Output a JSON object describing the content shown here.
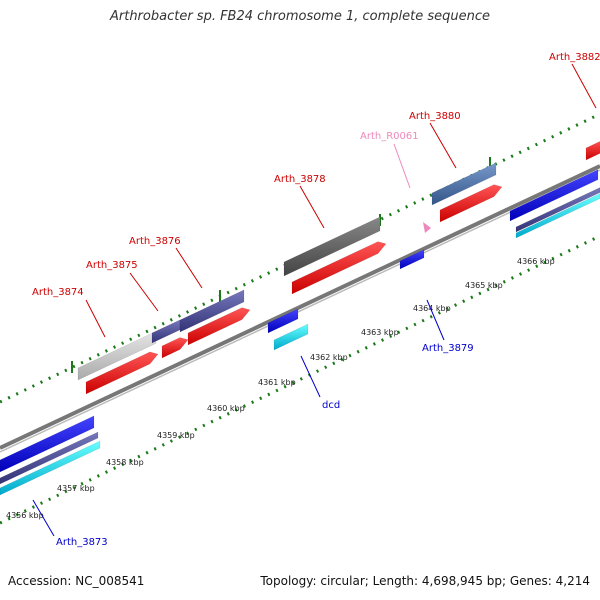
{
  "title": "Arthrobacter sp. FB24 chromosome 1, complete sequence",
  "footer": {
    "accession": "Accession: NC_008541",
    "summary": "Topology: circular; Length: 4,698,945 bp; Genes: 4,214"
  },
  "scale_labels": [
    "4356 kbp",
    "4357 kbp",
    "4358 kbp",
    "4359 kbp",
    "4360 kbp",
    "4361 kbp",
    "4362 kbp",
    "4363 kbp",
    "4364 kbp",
    "4365 kbp",
    "4366 kbp"
  ],
  "gene_labels": [
    {
      "name": "Arth_3874",
      "color": "#cc0000"
    },
    {
      "name": "Arth_3875",
      "color": "#cc0000"
    },
    {
      "name": "Arth_3876",
      "color": "#cc0000"
    },
    {
      "name": "Arth_3878",
      "color": "#cc0000"
    },
    {
      "name": "Arth_R0061",
      "color": "#ee88bb"
    },
    {
      "name": "Arth_3880",
      "color": "#cc0000"
    },
    {
      "name": "Arth_3882",
      "color": "#cc0000"
    },
    {
      "name": "Arth_3879",
      "color": "#0000cc"
    },
    {
      "name": "dcd",
      "color": "#0000cc"
    },
    {
      "name": "Arth_3873",
      "color": "#0000cc"
    }
  ],
  "colors": {
    "forward_cds": "#ee1111",
    "reverse_cds": "#1111dd",
    "backbone": "#888888",
    "tick": "#1a7a1a"
  }
}
